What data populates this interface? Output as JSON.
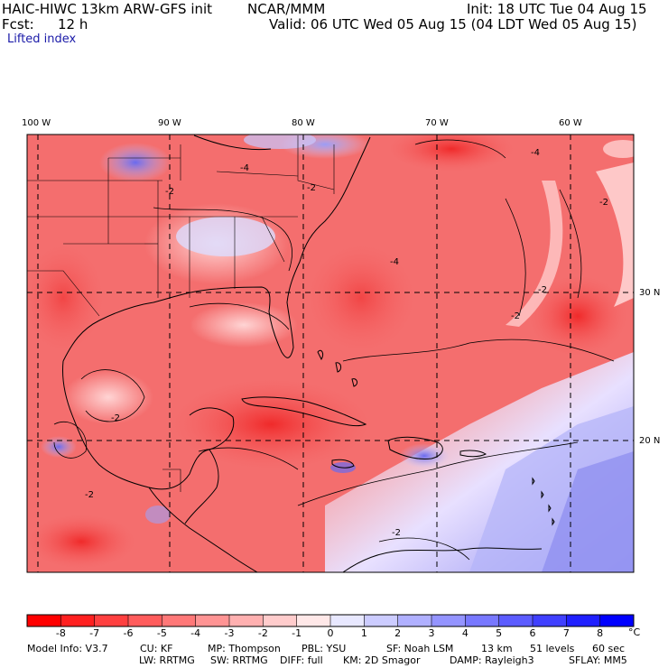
{
  "header": {
    "model_title": "HAIC-HIWC 13km ARW-GFS init",
    "org": "NCAR/MMM",
    "init_text": "Init: 18 UTC Tue 04 Aug 15",
    "fcst_label": "Fcst:",
    "fcst_value": "12 h",
    "valid_text": "Valid: 06 UTC Wed 05 Aug 15 (04 LDT Wed 05 Aug 15)",
    "field_name": "Lifted index"
  },
  "map": {
    "lon_labels": [
      "100 W",
      "90 W",
      "80 W",
      "70 W",
      "60 W"
    ],
    "lat_labels": [
      "30 N",
      "20 N"
    ],
    "contour_labels": [
      "-4",
      "-2",
      "-2",
      "-4",
      "-2",
      "-2",
      "-2",
      "-2",
      "-4",
      "-2",
      "-2"
    ]
  },
  "colorbar": {
    "ticks": [
      "-8",
      "-7",
      "-6",
      "-5",
      "-4",
      "-3",
      "-2",
      "-1",
      "0",
      "1",
      "2",
      "3",
      "4",
      "5",
      "6",
      "7",
      "8"
    ],
    "unit": "°C",
    "colors": [
      "#ff0000",
      "#ff2020",
      "#ff4040",
      "#ff5c5c",
      "#ff7878",
      "#ff9494",
      "#ffb0b0",
      "#ffcccc",
      "#ffe8e8",
      "#e8e8ff",
      "#ccccff",
      "#b0b0ff",
      "#9494ff",
      "#7878ff",
      "#5c5cff",
      "#4040ff",
      "#2020ff",
      "#0000ff"
    ]
  },
  "model_info": {
    "line1": [
      "Model Info: V3.7",
      "CU: KF",
      "MP: Thompson",
      "PBL: YSU",
      "SF: Noah LSM",
      "13 km",
      "51 levels",
      "60 sec"
    ],
    "line2": [
      "LW: RRTMG",
      "SW: RRTMG",
      "DIFF: full",
      "KM: 2D Smagor",
      "DAMP: Rayleigh3",
      "SFLAY: MM5"
    ]
  }
}
